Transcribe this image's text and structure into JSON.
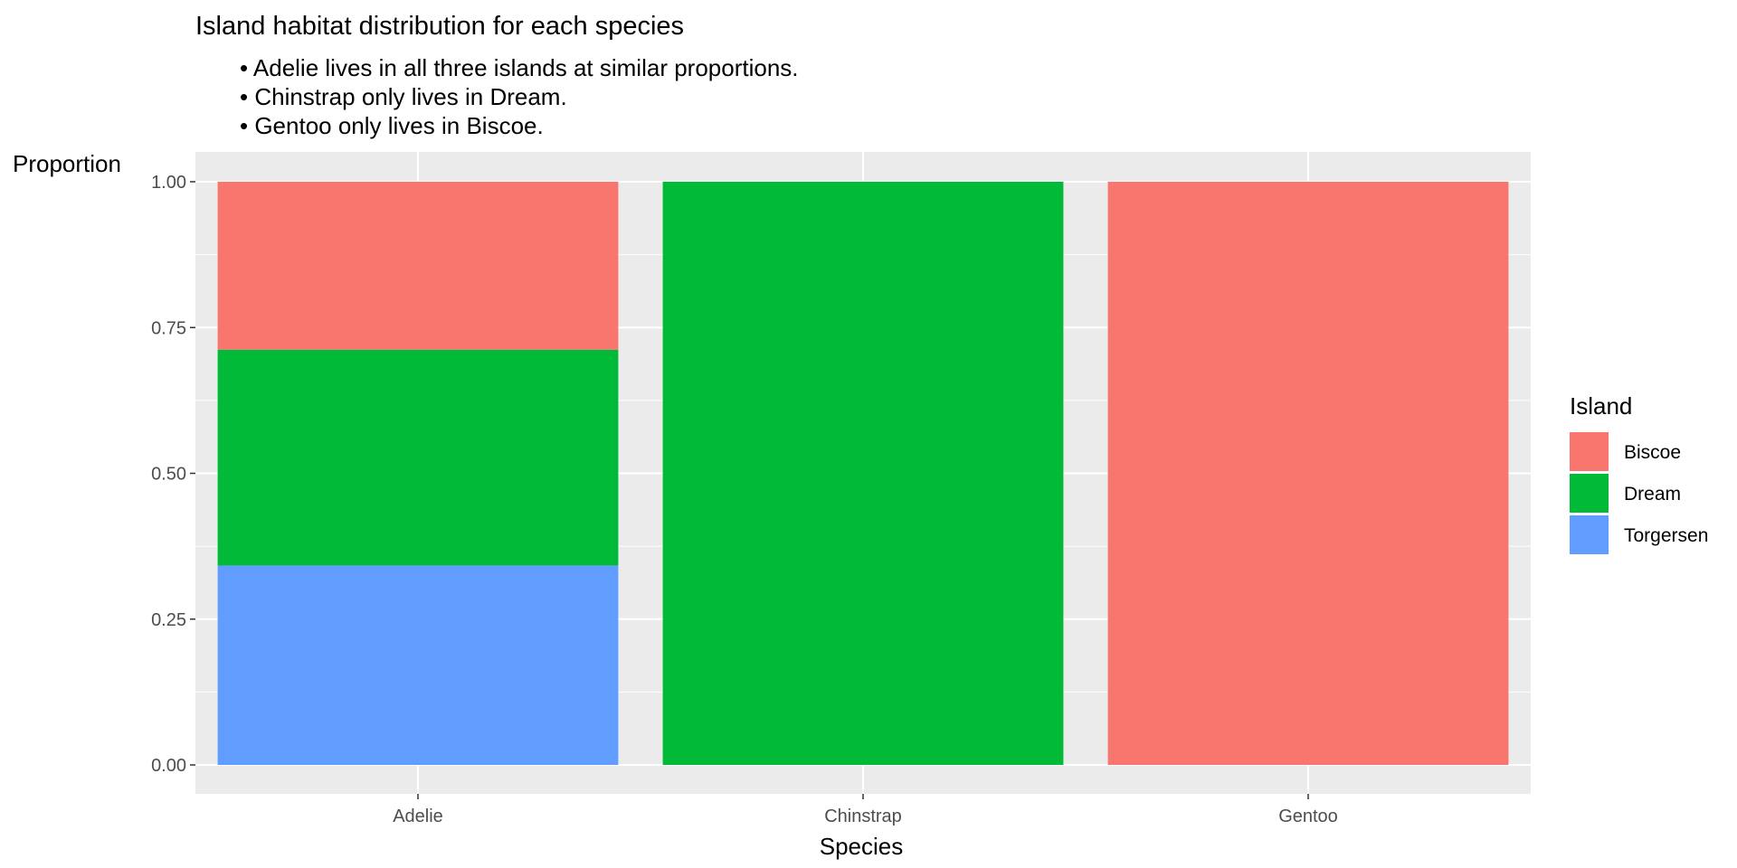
{
  "chart_data": {
    "type": "bar",
    "stacked": true,
    "title": "Island habitat distribution for each species",
    "subtitle_lines": [
      "• Adelie lives in all three islands at similar proportions.",
      "• Chinstrap only lives in Dream.",
      "• Gentoo only lives in Biscoe."
    ],
    "xlabel": "Species",
    "ylabel": "Proportion",
    "categories": [
      "Adelie",
      "Chinstrap",
      "Gentoo"
    ],
    "series": [
      {
        "name": "Torgersen",
        "color": "#619CFF",
        "values": [
          0.342,
          0.0,
          0.0
        ]
      },
      {
        "name": "Dream",
        "color": "#00BA38",
        "values": [
          0.37,
          1.0,
          0.0
        ]
      },
      {
        "name": "Biscoe",
        "color": "#F8766D",
        "values": [
          0.288,
          0.0,
          1.0
        ]
      }
    ],
    "ylim": [
      0,
      1
    ],
    "yticks": [
      0,
      0.25,
      0.5,
      0.75,
      1
    ],
    "ytick_labels": [
      "0.00",
      "0.25",
      "0.50",
      "0.75",
      "1.00"
    ],
    "grid": true,
    "legend": {
      "title": "Island",
      "position": "right",
      "order": [
        "Biscoe",
        "Dream",
        "Torgersen"
      ]
    },
    "panel_background": "#EBEBEB",
    "grid_color": "#FFFFFF"
  }
}
